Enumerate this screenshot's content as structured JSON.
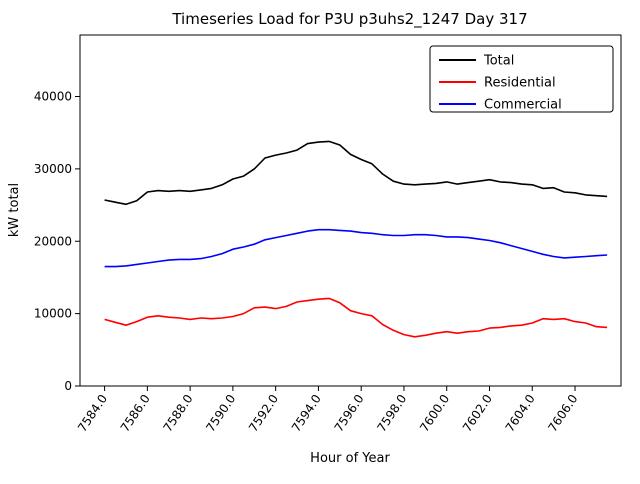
{
  "chart_data": {
    "type": "line",
    "title": "Timeseries Load for P3U p3uhs2_1247  Day 317",
    "xlabel": "Hour of Year",
    "ylabel": "kW total",
    "grid": false,
    "legend_position": "top-right",
    "xlim": [
      7582.85,
      7608.15
    ],
    "ylim": [
      0,
      48500
    ],
    "y_ticks": [
      0,
      10000,
      20000,
      30000,
      40000
    ],
    "y_tick_labels": [
      "0",
      "10000",
      "20000",
      "30000",
      "40000"
    ],
    "x_ticks": [
      7584,
      7586,
      7588,
      7590,
      7592,
      7594,
      7596,
      7598,
      7600,
      7602,
      7604,
      7606
    ],
    "x_tick_labels": [
      "7584.0",
      "7586.0",
      "7588.0",
      "7590.0",
      "7592.0",
      "7594.0",
      "7596.0",
      "7598.0",
      "7600.0",
      "7602.0",
      "7604.0",
      "7606.0"
    ],
    "x": [
      7584.0,
      7584.5,
      7585.0,
      7585.5,
      7586.0,
      7586.5,
      7587.0,
      7587.5,
      7588.0,
      7588.5,
      7589.0,
      7589.5,
      7590.0,
      7590.5,
      7591.0,
      7591.5,
      7592.0,
      7592.5,
      7593.0,
      7593.5,
      7594.0,
      7594.5,
      7595.0,
      7595.5,
      7596.0,
      7596.5,
      7597.0,
      7597.5,
      7598.0,
      7598.5,
      7599.0,
      7599.5,
      7600.0,
      7600.5,
      7601.0,
      7601.5,
      7602.0,
      7602.5,
      7603.0,
      7603.5,
      7604.0,
      7604.5,
      7605.0,
      7605.5,
      7606.0,
      7606.5,
      7607.0,
      7607.5
    ],
    "series": [
      {
        "name": "Total",
        "color": "#000000",
        "values": [
          25700,
          25400,
          25100,
          25600,
          26800,
          27000,
          26900,
          27000,
          26900,
          27100,
          27300,
          27800,
          28600,
          29000,
          30000,
          31500,
          31900,
          32200,
          32600,
          33500,
          33700,
          33800,
          33300,
          32000,
          31300,
          30700,
          29300,
          28300,
          27900,
          27800,
          27900,
          28000,
          28200,
          27900,
          28100,
          28300,
          28500,
          28200,
          28100,
          27900,
          27800,
          27300,
          27400,
          26800,
          26700,
          26400,
          26300,
          26200
        ]
      },
      {
        "name": "Residential",
        "color": "#ff0000",
        "values": [
          9200,
          8800,
          8400,
          8900,
          9500,
          9700,
          9500,
          9400,
          9200,
          9400,
          9300,
          9400,
          9600,
          10000,
          10800,
          10900,
          10700,
          11000,
          11600,
          11800,
          12000,
          12100,
          11500,
          10400,
          10000,
          9700,
          8500,
          7700,
          7100,
          6800,
          7000,
          7300,
          7500,
          7300,
          7500,
          7600,
          8000,
          8100,
          8300,
          8400,
          8700,
          9300,
          9200,
          9300,
          8900,
          8700,
          8200,
          8100
        ]
      },
      {
        "name": "Commercial",
        "color": "#0000ff",
        "values": [
          16500,
          16500,
          16600,
          16800,
          17000,
          17200,
          17400,
          17500,
          17500,
          17600,
          17900,
          18300,
          18900,
          19200,
          19600,
          20200,
          20500,
          20800,
          21100,
          21400,
          21600,
          21600,
          21500,
          21400,
          21200,
          21100,
          20900,
          20800,
          20800,
          20900,
          20900,
          20800,
          20600,
          20600,
          20500,
          20300,
          20100,
          19800,
          19400,
          19000,
          18600,
          18200,
          17900,
          17700,
          17800,
          17900,
          18000,
          18100
        ]
      }
    ]
  }
}
